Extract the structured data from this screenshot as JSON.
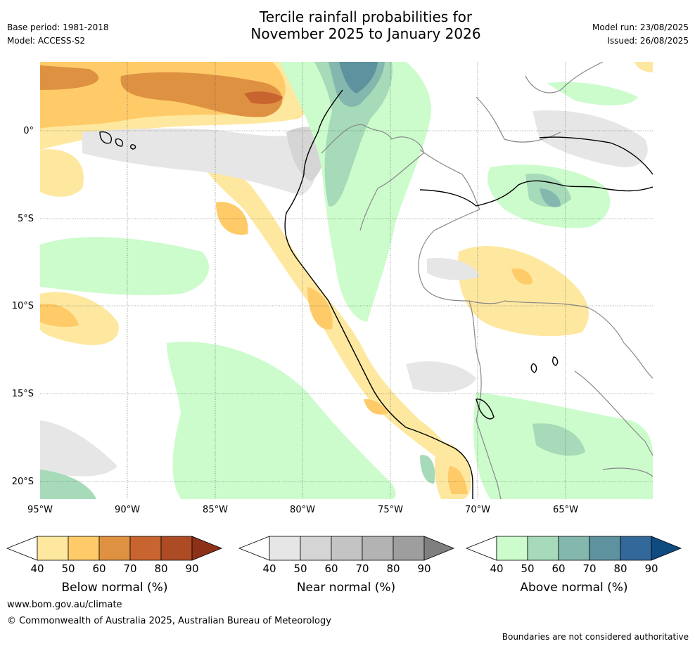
{
  "header": {
    "title_line1": "Tercile rainfall probabilities for",
    "title_line2": "November 2025 to January 2026",
    "base_period": "Base period: 1981-2018",
    "model": "Model: ACCESS-S2",
    "model_run": "Model run: 23/08/2025",
    "issued": "Issued: 26/08/2025"
  },
  "map": {
    "lat_labels": [
      "0°",
      "5°S",
      "10°S",
      "15°S",
      "20°S"
    ],
    "lon_labels": [
      "95°W",
      "90°W",
      "85°W",
      "80°W",
      "75°W",
      "70°W",
      "65°W"
    ]
  },
  "colorbars": [
    {
      "title": "Below normal (%)",
      "ticks": [
        "40",
        "50",
        "60",
        "70",
        "80",
        "90"
      ],
      "colors": [
        "#fee8a0",
        "#fecb68",
        "#df9142",
        "#c8642f",
        "#ad4b24",
        "#8c3117"
      ]
    },
    {
      "title": "Near normal (%)",
      "ticks": [
        "40",
        "50",
        "60",
        "70",
        "80",
        "90"
      ],
      "colors": [
        "#e6e6e6",
        "#d5d5d5",
        "#c4c4c4",
        "#b3b3b3",
        "#9e9e9e",
        "#7f7f7f"
      ]
    },
    {
      "title": "Above normal (%)",
      "ticks": [
        "40",
        "50",
        "60",
        "70",
        "80",
        "90"
      ],
      "colors": [
        "#ccfccc",
        "#a6dab8",
        "#84b7ae",
        "#5d929e",
        "#33699a",
        "#0f4a80"
      ]
    }
  ],
  "footer": {
    "website": "www.bom.gov.au/climate",
    "copyright": "© Commonwealth of Australia 2025, Australian Bureau of Meteorology",
    "disclaimer": "Boundaries are not considered authoritative"
  }
}
